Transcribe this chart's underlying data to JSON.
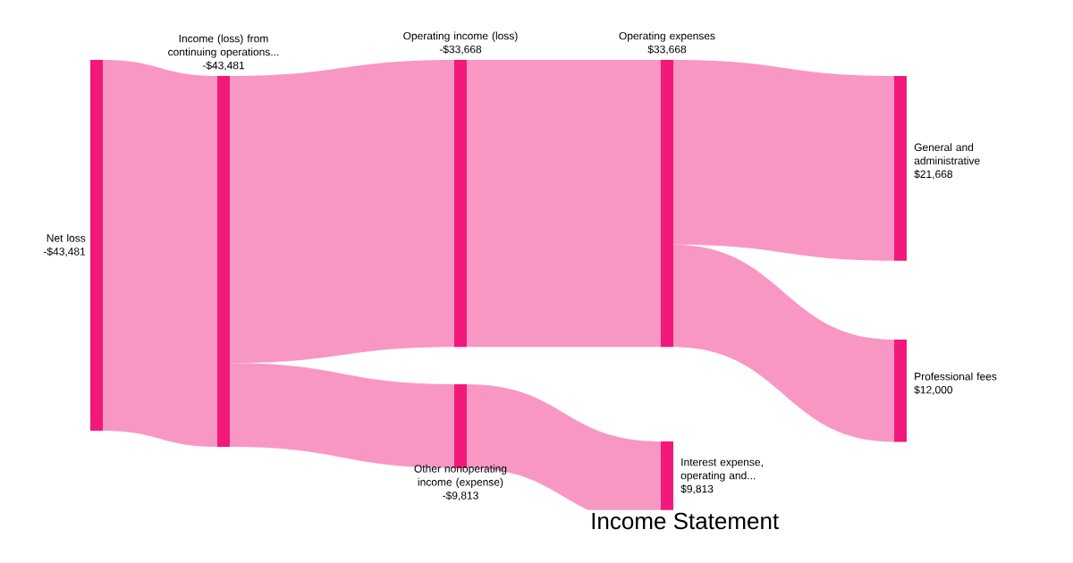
{
  "chart_data": {
    "type": "other",
    "title": "Income Statement",
    "categories": [
      "Net loss",
      "Income (loss) from continuing operations...",
      "Operating income (loss)",
      "Other nonoperating income (expense)",
      "Operating expenses",
      "Interest expense, operating and...",
      "General and administrative",
      "Professional fees"
    ],
    "values": [
      -43481,
      -43481,
      -33668,
      -9813,
      33668,
      9813,
      21668,
      12000
    ],
    "value_labels": [
      "-$43,481",
      "-$43,481",
      "-$33,668",
      "-$9,813",
      "$33,668",
      "$9,813",
      "$21,668",
      "$12,000"
    ],
    "color": "#f2197b"
  }
}
